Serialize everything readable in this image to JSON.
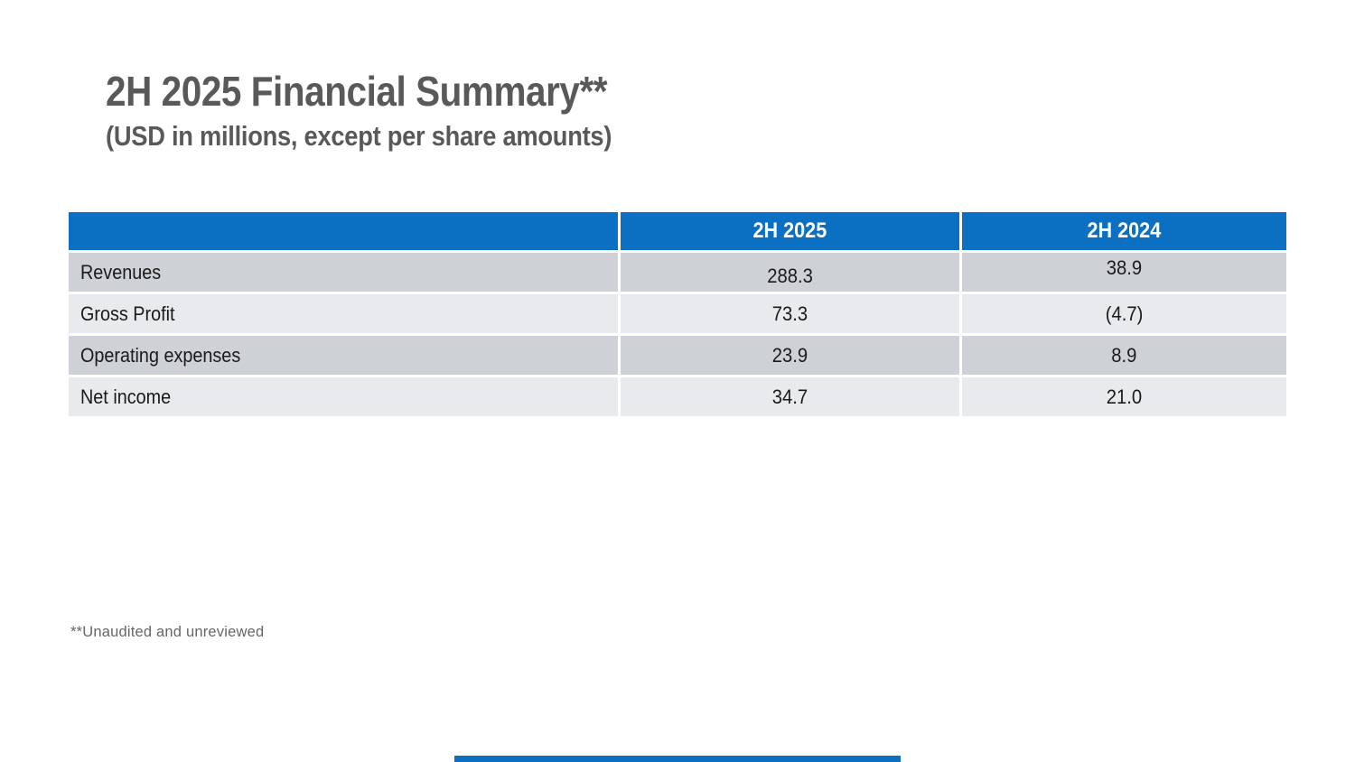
{
  "slide": {
    "title": "2H 2025 Financial Summary**",
    "subtitle": "(USD in millions, except per share amounts)",
    "footnote": "**Unaudited and unreviewed"
  },
  "table": {
    "columns": {
      "label": "",
      "col_2025": "2H 2025",
      "col_2024": "2H 2024"
    },
    "rows": [
      {
        "label": "Revenues",
        "v2025": "288.3",
        "v2024": "38.9"
      },
      {
        "label": "Gross Profit",
        "v2025": "73.3",
        "v2024": "(4.7)"
      },
      {
        "label": "Operating expenses",
        "v2025": "23.9",
        "v2024": "8.9"
      },
      {
        "label": "Net income",
        "v2025": "34.7",
        "v2024": "21.0"
      }
    ]
  },
  "colors": {
    "header_blue": "#0b70c2",
    "row_dark_gray": "#ced2d7",
    "row_light_gray": "#e8eaed",
    "title_gray": "#595959",
    "accent_bar_blue": "#0b70c2"
  }
}
